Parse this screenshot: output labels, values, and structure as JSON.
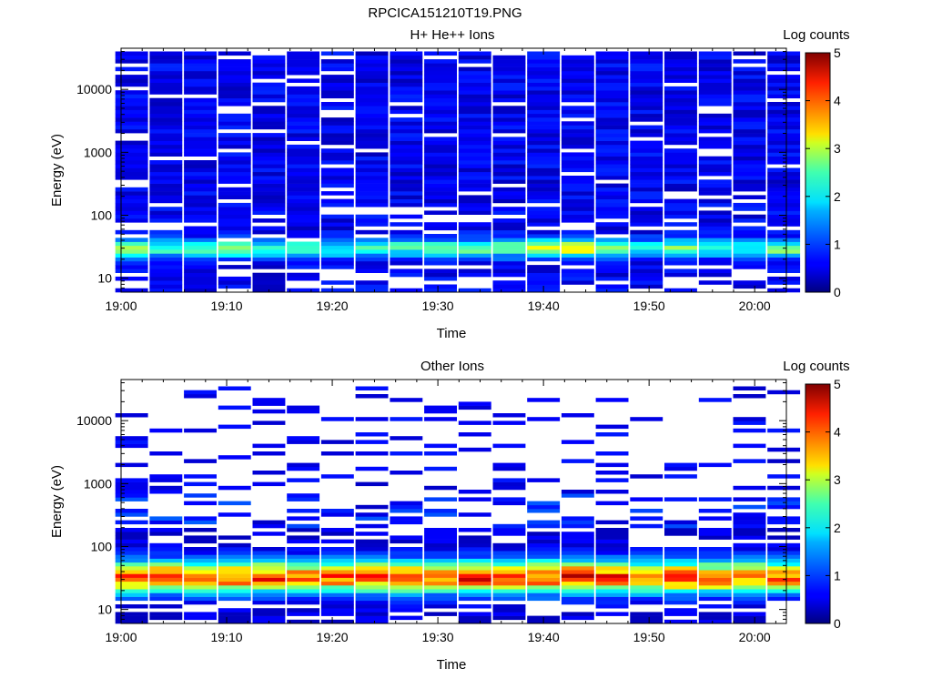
{
  "figure": {
    "file_title": "RPCICA151210T19.PNG"
  },
  "panels": [
    {
      "title": "H+ He++ Ions",
      "xlabel": "Time",
      "ylabel": "Energy (eV)",
      "colorbar_label": "Log counts"
    },
    {
      "title": "Other Ions",
      "xlabel": "Time",
      "ylabel": "Energy (eV)",
      "colorbar_label": "Log counts"
    }
  ],
  "chart_data": [
    {
      "type": "heatmap",
      "title": "H+ He++ Ions",
      "xlabel": "Time",
      "ylabel": "Energy (eV)",
      "x_axis": {
        "min_minutes_after_19": 0,
        "max_minutes_after_19": 63,
        "tick_labels": [
          "19:00",
          "19:10",
          "19:20",
          "19:30",
          "19:40",
          "19:50",
          "20:00"
        ],
        "tick_minutes": [
          0,
          10,
          20,
          30,
          40,
          50,
          60
        ]
      },
      "y_axis": {
        "scale": "log",
        "ylim": [
          6,
          45000
        ],
        "tick_labels": [
          "10",
          "100",
          "1000",
          "10000"
        ],
        "tick_values": [
          10,
          100,
          1000,
          10000
        ]
      },
      "colorbar": {
        "label": "Log counts",
        "range": [
          0,
          5
        ],
        "tick_labels": [
          "0",
          "1",
          "2",
          "3",
          "4",
          "5"
        ]
      },
      "time_bins_minutes": [
        1.0,
        4.25,
        7.5,
        10.75,
        14.0,
        17.25,
        20.5,
        23.75,
        27.0,
        30.25,
        33.5,
        36.75,
        40.0,
        43.25,
        46.5,
        49.75,
        53.0,
        56.25,
        59.5,
        62.75
      ],
      "energy_range_eV": [
        6,
        40000
      ],
      "profile": {
        "low_energy_peak_eV": 30,
        "peak_log_counts": [
          2.2,
          1.8,
          1.8,
          2.0,
          1.8,
          1.7,
          1.6,
          1.7,
          1.7,
          1.9,
          1.9,
          2.1,
          2.4,
          2.6,
          1.9,
          1.7,
          1.9,
          1.6,
          1.5,
          2.0
        ],
        "background_log_counts": 0.55
      }
    },
    {
      "type": "heatmap",
      "title": "Other Ions",
      "xlabel": "Time",
      "ylabel": "Energy (eV)",
      "x_axis": {
        "min_minutes_after_19": 0,
        "max_minutes_after_19": 63,
        "tick_labels": [
          "19:00",
          "19:10",
          "19:20",
          "19:30",
          "19:40",
          "19:50",
          "20:00"
        ],
        "tick_minutes": [
          0,
          10,
          20,
          30,
          40,
          50,
          60
        ]
      },
      "y_axis": {
        "scale": "log",
        "ylim": [
          6,
          45000
        ],
        "tick_labels": [
          "10",
          "100",
          "1000",
          "10000"
        ],
        "tick_values": [
          10,
          100,
          1000,
          10000
        ]
      },
      "colorbar": {
        "label": "Log counts",
        "range": [
          0,
          5
        ],
        "tick_labels": [
          "0",
          "1",
          "2",
          "3",
          "4",
          "5"
        ]
      },
      "time_bins_minutes": [
        1.0,
        4.25,
        7.5,
        10.75,
        14.0,
        17.25,
        20.5,
        23.75,
        27.0,
        30.25,
        33.5,
        36.75,
        40.0,
        43.25,
        46.5,
        49.75,
        53.0,
        56.25,
        59.5,
        62.75
      ],
      "energy_range_eV": [
        6,
        35000
      ],
      "profile": {
        "peak_energy_eV": 33,
        "peak_log_counts": [
          3.7,
          3.6,
          3.5,
          3.8,
          3.7,
          3.5,
          3.6,
          3.8,
          3.7,
          3.6,
          4.0,
          3.9,
          3.9,
          4.3,
          3.9,
          3.6,
          3.9,
          3.5,
          3.4,
          3.8
        ],
        "sparse_high_energy_log_counts": 0.35
      }
    }
  ]
}
